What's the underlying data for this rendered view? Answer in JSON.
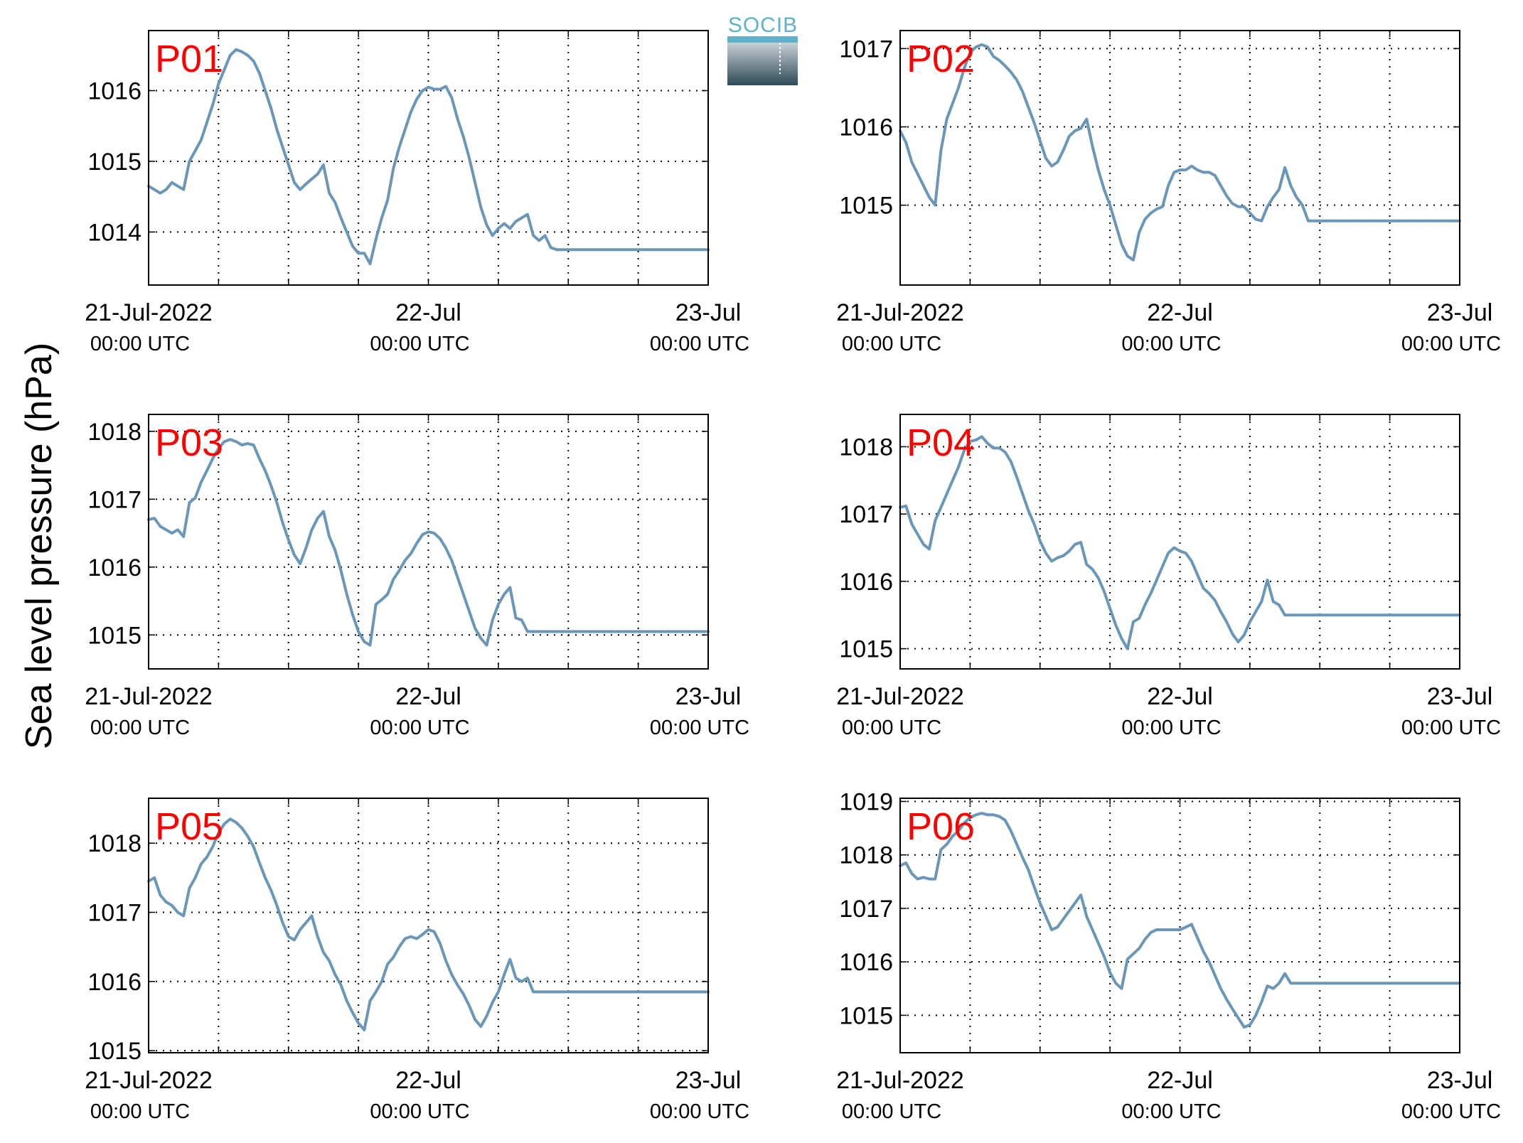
{
  "figure": {
    "ylabel": "Sea level pressure (hPa)",
    "logo_text": "SOCIB",
    "colors": {
      "line": "#6a96b7",
      "panel_label": "#ff0000",
      "grid": "#000000"
    }
  },
  "chart_data": [
    {
      "type": "line",
      "panel_label": "P01",
      "xlim": [
        0,
        48
      ],
      "ylim": [
        1013.25,
        1016.85
      ],
      "yticks": [
        1014,
        1015,
        1016
      ],
      "x": [
        0,
        1,
        1.5,
        2,
        2.5,
        3,
        3.5,
        4,
        4.5,
        5,
        5.5,
        6,
        6.5,
        7,
        7.5,
        8,
        8.5,
        9,
        9.5,
        10,
        10.5,
        11,
        11.5,
        12,
        12.5,
        13,
        13.5,
        14,
        14.5,
        15,
        15.5,
        16,
        16.5,
        17,
        17.5,
        18,
        18.5,
        19,
        19.5,
        20,
        20.5,
        21,
        21.5,
        22,
        22.5,
        23,
        23.5,
        24,
        24.5,
        25,
        25.5,
        26,
        26.5,
        27,
        27.5,
        28,
        28.5,
        29,
        29.5,
        30,
        30.5,
        31,
        31.5,
        32,
        32.5,
        33,
        33.5,
        34,
        34.5,
        35,
        35.5,
        36,
        36.5,
        37,
        37.5,
        38,
        38.5,
        39,
        39.5,
        40,
        40.5,
        41,
        41.5,
        42,
        42.5,
        43,
        43.5,
        44,
        44.5,
        45,
        45.5,
        46,
        46.5,
        47,
        47.5,
        48
      ],
      "y": [
        1014.65,
        1014.55,
        1014.6,
        1014.7,
        1014.65,
        1014.6,
        1015,
        1015.15,
        1015.3,
        1015.55,
        1015.8,
        1016.1,
        1016.3,
        1016.5,
        1016.58,
        1016.55,
        1016.5,
        1016.42,
        1016.25,
        1016,
        1015.75,
        1015.45,
        1015.2,
        1014.95,
        1014.7,
        1014.6,
        1014.68,
        1014.75,
        1014.82,
        1014.95,
        1014.55,
        1014.42,
        1014.2,
        1014,
        1013.8,
        1013.7,
        1013.7,
        1013.55,
        1013.9,
        1014.2,
        1014.45,
        1014.9,
        1015.2,
        1015.45,
        1015.7,
        1015.88,
        1016,
        1016.05,
        1016.02,
        1016.02,
        1016.06,
        1015.9,
        1015.6,
        1015.35,
        1015.05,
        1014.7,
        1014.35,
        1014.1,
        1013.95,
        1014.05,
        1014.12,
        1014.05,
        1014.15,
        1014.2,
        1014.25,
        1013.95,
        1013.88,
        1013.95,
        1013.78,
        1013.75,
        1013.75,
        1013.75,
        1013.75,
        1013.75,
        1013.75,
        1013.75,
        1013.75,
        1013.75,
        1013.75,
        1013.75,
        1013.75,
        1013.75,
        1013.75,
        1013.75,
        1013.75,
        1013.75,
        1013.75,
        1013.75,
        1013.75,
        1013.75,
        1013.75,
        1013.75,
        1013.75,
        1013.75,
        1013.75,
        1013.75
      ]
    },
    {
      "type": "line",
      "panel_label": "P02",
      "xlim": [
        0,
        48
      ],
      "ylim": [
        1013.98,
        1017.23
      ],
      "yticks": [
        1015,
        1016,
        1017
      ],
      "x": [
        0,
        0.5,
        1,
        1.5,
        2,
        2.5,
        3,
        3.5,
        4,
        4.5,
        5,
        5.5,
        6,
        6.5,
        7,
        7.5,
        8,
        8.5,
        9,
        9.5,
        10,
        10.5,
        11,
        11.5,
        12,
        12.5,
        13,
        13.5,
        14,
        14.5,
        15,
        15.5,
        16,
        16.5,
        17,
        17.5,
        18,
        18.5,
        19,
        19.5,
        20,
        20.5,
        21,
        21.5,
        22,
        22.5,
        23,
        23.5,
        24,
        24.5,
        25,
        25.5,
        26,
        26.5,
        27,
        27.5,
        28,
        28.5,
        29,
        29.5,
        30,
        30.5,
        31,
        31.5,
        32,
        32.5,
        33,
        33.5,
        34,
        34.5,
        35,
        35.5,
        36,
        36.5,
        37,
        37.5,
        38,
        38.5,
        39,
        39.5,
        40,
        40.5,
        41,
        41.5,
        42,
        42.5,
        43,
        43.5,
        44,
        44.5,
        45,
        45.5,
        46,
        46.5,
        47,
        47.5,
        48
      ],
      "y": [
        1015.95,
        1015.8,
        1015.55,
        1015.4,
        1015.25,
        1015.1,
        1015,
        1015.7,
        1016.1,
        1016.3,
        1016.5,
        1016.75,
        1016.95,
        1017.02,
        1017.05,
        1017.02,
        1016.9,
        1016.85,
        1016.78,
        1016.7,
        1016.6,
        1016.45,
        1016.25,
        1016.05,
        1015.82,
        1015.6,
        1015.5,
        1015.55,
        1015.7,
        1015.88,
        1015.95,
        1015.98,
        1016.1,
        1015.75,
        1015.45,
        1015.2,
        1015,
        1014.75,
        1014.5,
        1014.35,
        1014.3,
        1014.65,
        1014.82,
        1014.9,
        1014.95,
        1014.98,
        1015.25,
        1015.42,
        1015.45,
        1015.45,
        1015.5,
        1015.45,
        1015.42,
        1015.42,
        1015.38,
        1015.25,
        1015.12,
        1015.02,
        1014.98,
        1014.98,
        1014.9,
        1014.82,
        1014.8,
        1014.98,
        1015.1,
        1015.2,
        1015.48,
        1015.25,
        1015.1,
        1015,
        1014.8,
        1014.8,
        1014.8,
        1014.8,
        1014.8,
        1014.8,
        1014.8,
        1014.8,
        1014.8,
        1014.8,
        1014.8,
        1014.8,
        1014.8,
        1014.8,
        1014.8,
        1014.8,
        1014.8,
        1014.8,
        1014.8,
        1014.8,
        1014.8,
        1014.8,
        1014.8,
        1014.8,
        1014.8,
        1014.8,
        1014.8
      ]
    },
    {
      "type": "line",
      "panel_label": "P03",
      "xlim": [
        0,
        48
      ],
      "ylim": [
        1014.5,
        1018.25
      ],
      "yticks": [
        1015,
        1016,
        1017,
        1018
      ],
      "x": [
        0,
        0.5,
        1,
        1.5,
        2,
        2.5,
        3,
        3.5,
        4,
        4.5,
        5,
        5.5,
        6,
        6.5,
        7,
        7.5,
        8,
        8.5,
        9,
        9.5,
        10,
        10.5,
        11,
        11.5,
        12,
        12.5,
        13,
        13.5,
        14,
        14.5,
        15,
        15.5,
        16,
        16.5,
        17,
        17.5,
        18,
        18.5,
        19,
        19.5,
        20,
        20.5,
        21,
        21.5,
        22,
        22.5,
        23,
        23.5,
        24,
        24.5,
        25,
        25.5,
        26,
        26.5,
        27,
        27.5,
        28,
        28.5,
        29,
        29.5,
        30,
        30.5,
        31,
        31.5,
        32,
        32.5,
        33,
        33.5,
        34,
        34.5,
        35,
        35.5,
        36,
        36.5,
        37,
        37.5,
        38,
        38.5,
        39,
        39.5,
        40,
        40.5,
        41,
        41.5,
        42,
        42.5,
        43,
        43.5,
        44,
        44.5,
        45,
        45.5,
        46,
        46.5,
        47,
        47.5,
        48
      ],
      "y": [
        1016.7,
        1016.72,
        1016.6,
        1016.55,
        1016.5,
        1016.55,
        1016.45,
        1016.95,
        1017.02,
        1017.25,
        1017.42,
        1017.6,
        1017.75,
        1017.85,
        1017.88,
        1017.85,
        1017.8,
        1017.82,
        1017.8,
        1017.6,
        1017.42,
        1017.2,
        1016.95,
        1016.65,
        1016.4,
        1016.18,
        1016.05,
        1016.28,
        1016.55,
        1016.72,
        1016.82,
        1016.45,
        1016.25,
        1015.95,
        1015.6,
        1015.3,
        1015.05,
        1014.9,
        1014.85,
        1015.45,
        1015.52,
        1015.6,
        1015.82,
        1015.95,
        1016.1,
        1016.2,
        1016.35,
        1016.48,
        1016.52,
        1016.5,
        1016.42,
        1016.28,
        1016.1,
        1015.85,
        1015.6,
        1015.35,
        1015.1,
        1014.95,
        1014.85,
        1015.22,
        1015.45,
        1015.6,
        1015.7,
        1015.25,
        1015.22,
        1015.05,
        1015.05,
        1015.05,
        1015.05,
        1015.05,
        1015.05,
        1015.05,
        1015.05,
        1015.05,
        1015.05,
        1015.05,
        1015.05,
        1015.05,
        1015.05,
        1015.05,
        1015.05,
        1015.05,
        1015.05,
        1015.05,
        1015.05,
        1015.05,
        1015.05,
        1015.05,
        1015.05,
        1015.05,
        1015.05,
        1015.05,
        1015.05,
        1015.05,
        1015.05,
        1015.05,
        1015.05
      ]
    },
    {
      "type": "line",
      "panel_label": "P04",
      "xlim": [
        0,
        48
      ],
      "ylim": [
        1014.7,
        1018.48
      ],
      "yticks": [
        1015,
        1016,
        1017,
        1018
      ],
      "x": [
        0,
        0.5,
        1,
        1.5,
        2,
        2.5,
        3,
        3.5,
        4,
        4.5,
        5,
        5.5,
        6,
        6.5,
        7,
        7.5,
        8,
        8.5,
        9,
        9.5,
        10,
        10.5,
        11,
        11.5,
        12,
        12.5,
        13,
        13.5,
        14,
        14.5,
        15,
        15.5,
        16,
        16.5,
        17,
        17.5,
        18,
        18.5,
        19,
        19.5,
        20,
        20.5,
        21,
        21.5,
        22,
        22.5,
        23,
        23.5,
        24,
        24.5,
        25,
        25.5,
        26,
        26.5,
        27,
        27.5,
        28,
        28.5,
        29,
        29.5,
        30,
        30.5,
        31,
        31.5,
        32,
        32.5,
        33,
        33.5,
        34,
        34.5,
        35,
        35.5,
        36,
        36.5,
        37,
        37.5,
        38,
        38.5,
        39,
        39.5,
        40,
        40.5,
        41,
        41.5,
        42,
        42.5,
        43,
        43.5,
        44,
        44.5,
        45,
        45.5,
        46,
        46.5,
        47,
        47.5,
        48
      ],
      "y": [
        1017.1,
        1017.12,
        1016.85,
        1016.7,
        1016.55,
        1016.48,
        1016.9,
        1017.1,
        1017.3,
        1017.5,
        1017.7,
        1017.95,
        1018.08,
        1018.1,
        1018.15,
        1018.05,
        1017.98,
        1017.98,
        1017.92,
        1017.78,
        1017.55,
        1017.3,
        1017.05,
        1016.85,
        1016.6,
        1016.42,
        1016.3,
        1016.35,
        1016.38,
        1016.45,
        1016.55,
        1016.58,
        1016.25,
        1016.18,
        1016.05,
        1015.85,
        1015.6,
        1015.35,
        1015.15,
        1015,
        1015.4,
        1015.45,
        1015.65,
        1015.82,
        1016.02,
        1016.22,
        1016.42,
        1016.5,
        1016.45,
        1016.42,
        1016.3,
        1016.1,
        1015.9,
        1015.82,
        1015.72,
        1015.55,
        1015.4,
        1015.22,
        1015.1,
        1015.2,
        1015.4,
        1015.55,
        1015.7,
        1016.02,
        1015.7,
        1015.65,
        1015.5,
        1015.5,
        1015.5,
        1015.5,
        1015.5,
        1015.5,
        1015.5,
        1015.5,
        1015.5,
        1015.5,
        1015.5,
        1015.5,
        1015.5,
        1015.5,
        1015.5,
        1015.5,
        1015.5,
        1015.5,
        1015.5,
        1015.5,
        1015.5,
        1015.5,
        1015.5,
        1015.5,
        1015.5,
        1015.5,
        1015.5,
        1015.5,
        1015.5,
        1015.5,
        1015.5
      ]
    },
    {
      "type": "line",
      "panel_label": "P05",
      "xlim": [
        0,
        48
      ],
      "ylim": [
        1014.97,
        1018.65
      ],
      "yticks": [
        1015,
        1016,
        1017,
        1018
      ],
      "x": [
        0,
        0.5,
        1,
        1.5,
        2,
        2.5,
        3,
        3.5,
        4,
        4.5,
        5,
        5.5,
        6,
        6.5,
        7,
        7.5,
        8,
        8.5,
        9,
        9.5,
        10,
        10.5,
        11,
        11.5,
        12,
        12.5,
        13,
        13.5,
        14,
        14.5,
        15,
        15.5,
        16,
        16.5,
        17,
        17.5,
        18,
        18.5,
        19,
        19.5,
        20,
        20.5,
        21,
        21.5,
        22,
        22.5,
        23,
        23.5,
        24,
        24.5,
        25,
        25.5,
        26,
        26.5,
        27,
        27.5,
        28,
        28.5,
        29,
        29.5,
        30,
        30.5,
        31,
        31.5,
        32,
        32.5,
        33,
        33.5,
        34,
        34.5,
        35,
        35.5,
        36,
        36.5,
        37,
        37.5,
        38,
        38.5,
        39,
        39.5,
        40,
        40.5,
        41,
        41.5,
        42,
        42.5,
        43,
        43.5,
        44,
        44.5,
        45,
        45.5,
        46,
        46.5,
        47,
        47.5,
        48
      ],
      "y": [
        1017.45,
        1017.5,
        1017.25,
        1017.15,
        1017.1,
        1017,
        1016.95,
        1017.35,
        1017.5,
        1017.7,
        1017.8,
        1017.95,
        1018.15,
        1018.28,
        1018.35,
        1018.3,
        1018.22,
        1018.1,
        1017.95,
        1017.72,
        1017.5,
        1017.32,
        1017.1,
        1016.85,
        1016.65,
        1016.6,
        1016.75,
        1016.85,
        1016.95,
        1016.65,
        1016.42,
        1016.3,
        1016.1,
        1015.95,
        1015.72,
        1015.55,
        1015.4,
        1015.3,
        1015.72,
        1015.85,
        1016,
        1016.25,
        1016.35,
        1016.5,
        1016.62,
        1016.65,
        1016.62,
        1016.68,
        1016.75,
        1016.72,
        1016.55,
        1016.3,
        1016.1,
        1015.95,
        1015.82,
        1015.65,
        1015.45,
        1015.35,
        1015.5,
        1015.7,
        1015.85,
        1016.1,
        1016.32,
        1016.05,
        1016,
        1016.05,
        1015.85,
        1015.85,
        1015.85,
        1015.85,
        1015.85,
        1015.85,
        1015.85,
        1015.85,
        1015.85,
        1015.85,
        1015.85,
        1015.85,
        1015.85,
        1015.85,
        1015.85,
        1015.85,
        1015.85,
        1015.85,
        1015.85,
        1015.85,
        1015.85,
        1015.85,
        1015.85,
        1015.85,
        1015.85,
        1015.85,
        1015.85,
        1015.85,
        1015.85,
        1015.85,
        1015.85
      ]
    },
    {
      "type": "line",
      "panel_label": "P06",
      "xlim": [
        0,
        48
      ],
      "ylim": [
        1014.3,
        1019.06
      ],
      "yticks": [
        1015,
        1016,
        1017,
        1018,
        1019
      ],
      "x": [
        0,
        0.5,
        1,
        1.5,
        2,
        2.5,
        3,
        3.5,
        4,
        4.5,
        5,
        5.5,
        6,
        6.5,
        7,
        7.5,
        8,
        8.5,
        9,
        9.5,
        10,
        10.5,
        11,
        11.5,
        12,
        12.5,
        13,
        13.5,
        14,
        14.5,
        15,
        15.5,
        16,
        16.5,
        17,
        17.5,
        18,
        18.5,
        19,
        19.5,
        20,
        20.5,
        21,
        21.5,
        22,
        22.5,
        23,
        23.5,
        24,
        24.5,
        25,
        25.5,
        26,
        26.5,
        27,
        27.5,
        28,
        28.5,
        29,
        29.5,
        30,
        30.5,
        31,
        31.5,
        32,
        32.5,
        33,
        33.5,
        34,
        34.5,
        35,
        35.5,
        36,
        36.5,
        37,
        37.5,
        38,
        38.5,
        39,
        39.5,
        40,
        40.5,
        41,
        41.5,
        42,
        42.5,
        43,
        43.5,
        44,
        44.5,
        45,
        45.5,
        46,
        46.5,
        47,
        47.5,
        48
      ],
      "y": [
        1017.8,
        1017.85,
        1017.65,
        1017.55,
        1017.58,
        1017.55,
        1017.55,
        1018.1,
        1018.2,
        1018.35,
        1018.45,
        1018.6,
        1018.7,
        1018.75,
        1018.78,
        1018.75,
        1018.75,
        1018.72,
        1018.65,
        1018.45,
        1018.2,
        1017.95,
        1017.72,
        1017.4,
        1017.1,
        1016.85,
        1016.6,
        1016.65,
        1016.8,
        1016.95,
        1017.1,
        1017.25,
        1016.85,
        1016.6,
        1016.35,
        1016.1,
        1015.8,
        1015.6,
        1015.5,
        1016.05,
        1016.15,
        1016.25,
        1016.42,
        1016.55,
        1016.6,
        1016.6,
        1016.6,
        1016.6,
        1016.6,
        1016.65,
        1016.7,
        1016.45,
        1016.2,
        1016,
        1015.75,
        1015.5,
        1015.3,
        1015.12,
        1014.95,
        1014.78,
        1014.82,
        1015,
        1015.25,
        1015.55,
        1015.5,
        1015.6,
        1015.78,
        1015.6,
        1015.6,
        1015.6,
        1015.6,
        1015.6,
        1015.6,
        1015.6,
        1015.6,
        1015.6,
        1015.6,
        1015.6,
        1015.6,
        1015.6,
        1015.6,
        1015.6,
        1015.6,
        1015.6,
        1015.6,
        1015.6,
        1015.6,
        1015.6,
        1015.6,
        1015.6,
        1015.6,
        1015.6,
        1015.6,
        1015.6,
        1015.6,
        1015.6,
        1015.6
      ]
    }
  ],
  "xaxis": {
    "tick_dates": [
      "21-Jul-2022",
      "22-Jul",
      "23-Jul"
    ],
    "tick_times": [
      "00:00 UTC",
      "00:00 UTC",
      "00:00 UTC"
    ]
  }
}
